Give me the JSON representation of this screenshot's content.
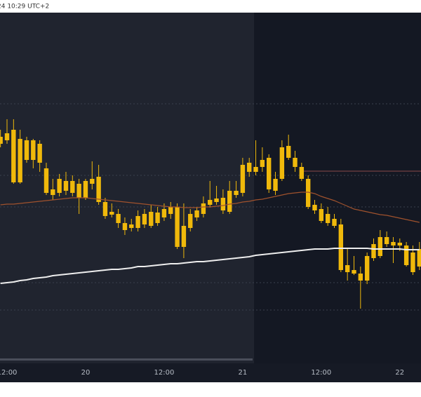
{
  "chart_data": {
    "type": "candlestick",
    "header": "24 10:29 UTC+2",
    "color": "#f0b90b",
    "categories": [
      null,
      "12:00",
      null,
      null,
      null,
      null,
      null,
      null,
      null,
      null,
      null,
      null,
      null,
      "20",
      null,
      null,
      null,
      null,
      null,
      null,
      null,
      null,
      null,
      null,
      null,
      "12:00",
      null,
      null,
      null,
      null,
      null,
      null,
      null,
      null,
      null,
      null,
      null,
      "21",
      null,
      null,
      null,
      null,
      null,
      null,
      null,
      null,
      null,
      null,
      null,
      "12:00",
      null,
      null,
      null,
      null,
      null,
      null,
      null,
      null,
      null,
      null,
      null,
      "22",
      null,
      null,
      null
    ],
    "open": [
      323,
      318,
      333,
      320,
      318,
      318,
      313,
      278,
      248,
      243,
      260,
      260,
      256,
      236,
      256,
      266,
      230,
      216,
      213,
      200,
      198,
      193,
      198,
      196,
      200,
      208,
      213,
      223,
      166,
      193,
      208,
      213,
      226,
      235,
      218,
      216,
      246,
      243,
      286,
      273,
      280,
      293,
      263,
      263,
      293,
      293,
      280,
      263,
      226,
      220,
      213,
      206,
      198,
      140,
      133,
      128,
      118,
      150,
      153,
      180,
      168,
      172,
      168,
      158,
      138
    ],
    "high": [
      333,
      348,
      348,
      333,
      323,
      320,
      318,
      286,
      263,
      270,
      273,
      268,
      263,
      263,
      288,
      283,
      236,
      228,
      220,
      208,
      206,
      218,
      220,
      226,
      223,
      228,
      230,
      228,
      228,
      220,
      223,
      238,
      260,
      253,
      248,
      260,
      260,
      293,
      293,
      318,
      308,
      298,
      273,
      318,
      326,
      303,
      286,
      268,
      233,
      228,
      223,
      213,
      206,
      163,
      153,
      138,
      158,
      178,
      190,
      188,
      180,
      178,
      173,
      168,
      173
    ],
    "low": [
      308,
      313,
      256,
      256,
      286,
      278,
      273,
      240,
      233,
      238,
      240,
      238,
      213,
      233,
      248,
      226,
      206,
      208,
      193,
      183,
      188,
      188,
      193,
      193,
      196,
      203,
      206,
      163,
      150,
      188,
      203,
      208,
      222,
      226,
      213,
      213,
      236,
      238,
      266,
      268,
      273,
      243,
      240,
      260,
      290,
      273,
      260,
      220,
      213,
      200,
      196,
      193,
      130,
      118,
      126,
      78,
      113,
      146,
      150,
      166,
      143,
      160,
      138,
      126,
      133
    ],
    "close": [
      313,
      328,
      258,
      258,
      290,
      290,
      286,
      243,
      240,
      263,
      246,
      243,
      236,
      260,
      263,
      230,
      210,
      212,
      200,
      190,
      193,
      210,
      213,
      216,
      215,
      220,
      223,
      166,
      196,
      213,
      218,
      228,
      233,
      230,
      236,
      246,
      240,
      283,
      273,
      280,
      290,
      248,
      246,
      308,
      310,
      280,
      263,
      223,
      218,
      203,
      200,
      196,
      133,
      130,
      128,
      118,
      153,
      170,
      180,
      170,
      173,
      168,
      140,
      130,
      163
    ],
    "lines": [
      {
        "color": "#a0522d",
        "values": [
          226,
          227,
          227,
          228,
          229,
          230,
          231,
          232,
          233,
          234,
          235,
          236,
          236,
          236,
          235,
          234,
          233,
          232,
          231,
          230,
          229,
          228,
          227,
          226,
          225,
          224,
          223,
          223,
          222,
          222,
          222,
          223,
          223,
          224,
          225,
          227,
          228,
          230,
          231,
          233,
          234,
          236,
          238,
          240,
          242,
          243,
          244,
          244,
          242,
          238,
          235,
          232,
          228,
          224,
          220,
          218,
          216,
          214,
          212,
          211,
          209,
          207,
          205,
          203,
          201
        ]
      },
      {
        "color": "#eeeeee",
        "values": [
          114,
          115,
          116,
          118,
          119,
          121,
          122,
          123,
          125,
          126,
          127,
          128,
          129,
          130,
          131,
          132,
          133,
          134,
          134,
          135,
          136,
          138,
          138,
          139,
          140,
          141,
          142,
          142,
          143,
          144,
          145,
          145,
          146,
          147,
          148,
          149,
          150,
          151,
          152,
          154,
          155,
          156,
          157,
          158,
          159,
          160,
          161,
          162,
          163,
          163,
          163,
          164,
          164,
          164,
          164,
          164,
          164,
          163,
          163,
          163,
          163,
          163,
          162,
          162,
          162
        ]
      }
    ],
    "price_line": {
      "color": "#8a4a4a",
      "value": 274
    },
    "ylim": [
      0,
      500
    ]
  }
}
